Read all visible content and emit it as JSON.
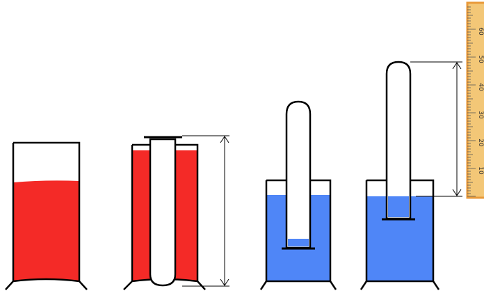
{
  "colors": {
    "red_liquid": "#f42a27",
    "blue_liquid": "#4f86f7",
    "ruler_face": "#f3c777",
    "ruler_edge": "#e89a3a",
    "outline": "#000000"
  },
  "ruler": {
    "tick_labels": [
      "10",
      "20",
      "30",
      "40",
      "50",
      "60"
    ],
    "orientation": "vertical",
    "label_rotation": "rotated"
  },
  "panels": [
    {
      "name": "beaker-with-red-liquid",
      "liquid": "red",
      "contents": "liquid only"
    },
    {
      "name": "beaker-with-red-liquid-and-test-tube",
      "liquid": "red",
      "contents": "inverted test tube, height marked with arrow"
    },
    {
      "name": "beaker-with-blue-water-and-tube-low",
      "liquid": "blue",
      "contents": "inverted tube, small water column inside"
    },
    {
      "name": "beaker-with-blue-water-and-tube-raised",
      "liquid": "blue",
      "contents": "inverted tube raised, height marked with arrow against ruler"
    }
  ],
  "icons": {
    "arrow": "double-headed-arrow-icon",
    "ruler": "ruler-icon"
  }
}
